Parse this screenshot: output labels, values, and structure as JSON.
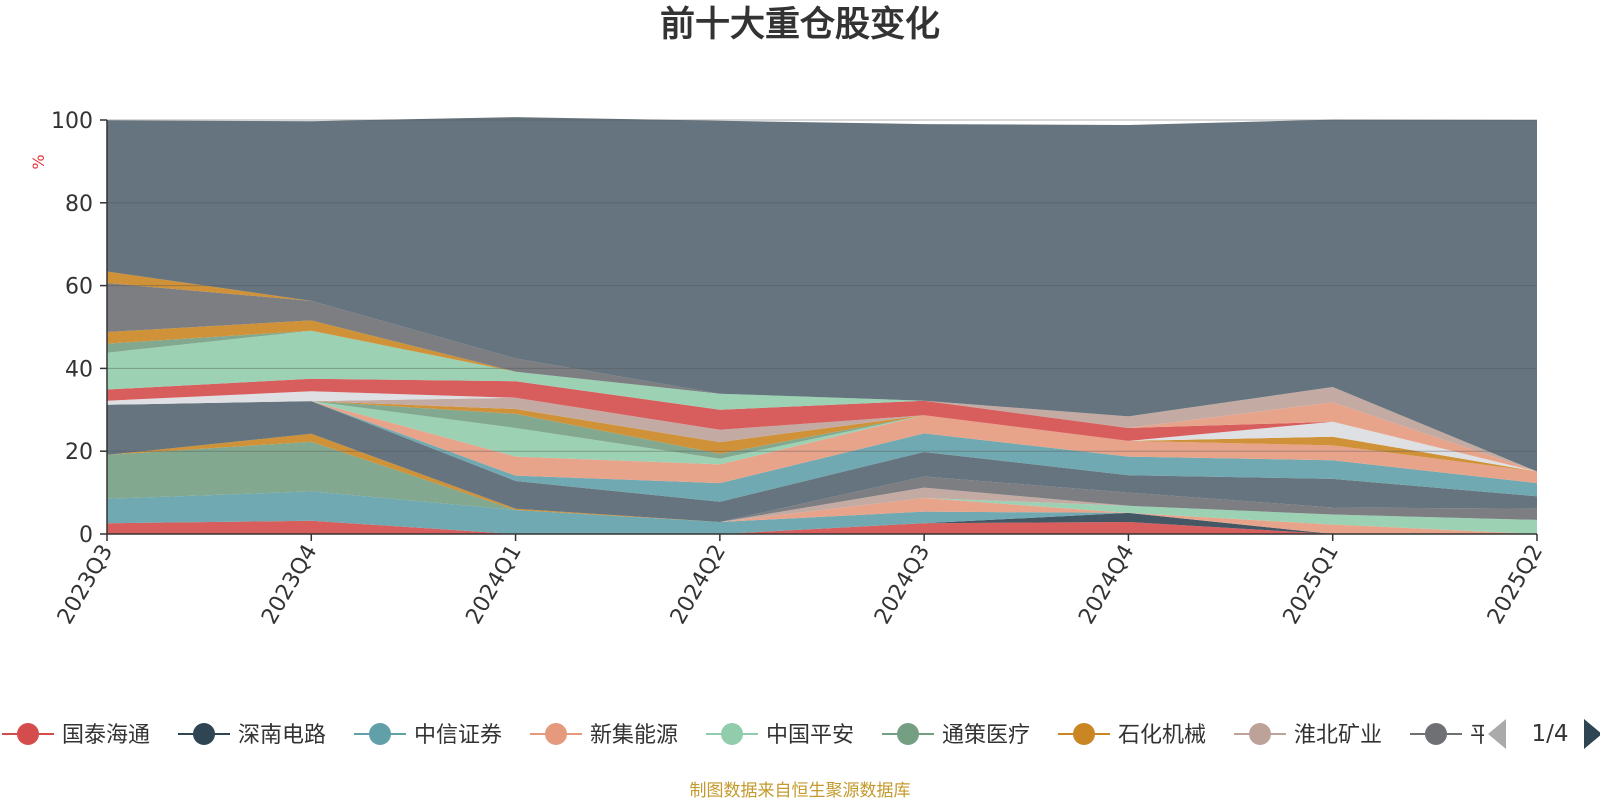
{
  "chart_data": {
    "type": "area",
    "title": "前十大重仓股变化",
    "ylabel": "%",
    "ylim": [
      0,
      100
    ],
    "yticks": [
      0,
      20,
      40,
      60,
      80,
      100
    ],
    "grid": true,
    "categories": [
      "2023Q3",
      "2023Q4",
      "2024Q1",
      "2024Q2",
      "2024Q3",
      "2024Q4",
      "2025Q1",
      "2025Q2"
    ],
    "series": [
      {
        "name": "国泰海通",
        "color": "#d44c4c",
        "values": [
          2.6,
          3.2,
          0,
          0,
          2.6,
          2.9,
          0,
          0
        ]
      },
      {
        "name": "深南电路",
        "color": "#2f4554",
        "values": [
          0,
          0,
          0,
          0,
          0,
          2.2,
          0,
          0
        ]
      },
      {
        "name": "中信证券",
        "color": "#61a0a8",
        "values": [
          5.9,
          7.1,
          5.8,
          2.9,
          2.8,
          0,
          0,
          0
        ]
      },
      {
        "name": "新集能源",
        "color": "#e59a7e",
        "values": [
          0,
          0,
          0,
          0,
          3.3,
          0,
          2.3,
          0
        ]
      },
      {
        "name": "中国平安",
        "color": "#91ccac",
        "values": [
          0,
          0,
          0,
          0,
          0,
          1.7,
          2.4,
          3.4
        ]
      },
      {
        "name": "通策医疗",
        "color": "#749f83",
        "values": [
          10.6,
          12.0,
          0,
          0,
          0,
          0,
          0,
          0
        ]
      },
      {
        "name": "石化机械",
        "color": "#ca8622",
        "values": [
          0,
          1.9,
          0.3,
          0,
          0,
          0,
          0,
          0
        ]
      },
      {
        "name": "淮北矿业",
        "color": "#bda29a",
        "values": [
          0,
          0,
          0,
          0,
          2.5,
          0,
          0,
          0
        ]
      },
      {
        "name": "平仓比例",
        "color": "#6e7074",
        "values": [
          0,
          0,
          0,
          0,
          2.7,
          3.2,
          1.7,
          2.7
        ]
      },
      {
        "name": "",
        "color": "#546570",
        "values": [
          12.1,
          7.9,
          6.7,
          4.9,
          5.9,
          4.2,
          6.9,
          3.0
        ]
      },
      {
        "name": "",
        "color": "#61a0a8",
        "values": [
          0,
          0,
          1.3,
          4.5,
          4.5,
          4.5,
          4.5,
          3.2
        ]
      },
      {
        "name": "",
        "color": "#e59a7e",
        "values": [
          0,
          0,
          4.6,
          4.5,
          4.4,
          3.8,
          3.6,
          2.8
        ]
      },
      {
        "name": "",
        "color": "#91ccac",
        "values": [
          0,
          0,
          6.9,
          1.4,
          0,
          0,
          0,
          0
        ]
      },
      {
        "name": "",
        "color": "#749f83",
        "values": [
          0,
          0,
          3.4,
          1.2,
          0,
          0,
          0,
          0
        ]
      },
      {
        "name": "",
        "color": "#ca8622",
        "values": [
          0,
          0,
          1.2,
          2.8,
          0,
          0,
          2.1,
          0
        ]
      },
      {
        "name": "",
        "color": "#bda29a",
        "values": [
          0,
          0,
          2.7,
          3.0,
          0,
          0,
          0,
          0
        ]
      },
      {
        "name": "",
        "color": "#dcdde1",
        "values": [
          1.0,
          2.4,
          0,
          0,
          0,
          0,
          3.6,
          0
        ]
      },
      {
        "name": "",
        "color": "#d44c4c",
        "values": [
          2.7,
          3.0,
          4.0,
          4.8,
          3.5,
          3.1,
          0,
          0
        ]
      },
      {
        "name": "",
        "color": "#91ccac",
        "values": [
          8.9,
          11.6,
          2.3,
          3.9,
          0,
          0,
          0,
          0
        ]
      },
      {
        "name": "",
        "color": "#749f83",
        "values": [
          2.2,
          0,
          0,
          0,
          0,
          0,
          0,
          0
        ]
      },
      {
        "name": "",
        "color": "#ca8622",
        "values": [
          2.8,
          2.5,
          0,
          0,
          0,
          0,
          0,
          0
        ]
      },
      {
        "name": "",
        "color": "#e59a7e",
        "values": [
          0,
          0,
          0,
          0,
          0,
          0,
          4.7,
          0
        ]
      },
      {
        "name": "",
        "color": "#bda29a",
        "values": [
          0,
          0,
          0,
          0,
          0,
          2.8,
          3.7,
          0
        ]
      },
      {
        "name": "",
        "color": "#6e7074",
        "values": [
          11.8,
          4.7,
          3.2,
          0,
          0,
          0,
          0,
          0
        ]
      },
      {
        "name": "",
        "color": "#ca8622",
        "values": [
          2.8,
          0,
          0,
          0,
          0,
          0,
          0,
          0
        ]
      },
      {
        "name": "",
        "color": "#546570",
        "values": [
          36.5,
          43.4,
          58.3,
          65.9,
          66.8,
          70.4,
          64.6,
          84.9
        ]
      }
    ]
  },
  "legend": {
    "items": [
      {
        "name": "国泰海通",
        "color": "#d44c4c"
      },
      {
        "name": "深南电路",
        "color": "#2f4554"
      },
      {
        "name": "中信证券",
        "color": "#61a0a8"
      },
      {
        "name": "新集能源",
        "color": "#e59a7e"
      },
      {
        "name": "中国平安",
        "color": "#91ccac"
      },
      {
        "name": "通策医疗",
        "color": "#749f83"
      },
      {
        "name": "石化机械",
        "color": "#ca8622"
      },
      {
        "name": "淮北矿业",
        "color": "#bda29a"
      },
      {
        "name": "平",
        "color": "#6e7074"
      }
    ],
    "page_indicator": "1/4",
    "prev_icon": "triangle-left-icon",
    "next_icon": "triangle-right-icon"
  },
  "source_note": "制图数据来自恒生聚源数据库"
}
